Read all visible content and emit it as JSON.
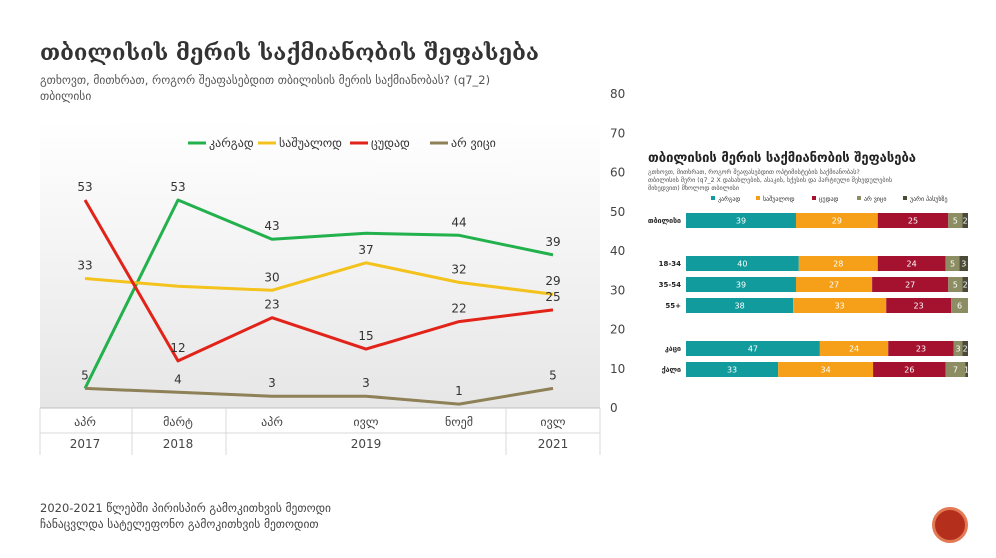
{
  "title": "თბილისის მერის საქმიანობის შეფასება",
  "subtitle": [
    "გთხოვთ, მითხრათ, როგორ შეაფასებდით თბილისის მერის საქმიანობას? (q7_2)",
    "თბილისი"
  ],
  "footer": [
    "2020-2021 წლებში პირისპირ გამოკითხვის მეთოდი",
    "ჩანაცვლდა სატელეფონო გამოკითხვის მეთოდით"
  ],
  "colors": {
    "good": "#22b14c",
    "average": "#f4c21c",
    "bad": "#e2231a",
    "dk": "#8e8057",
    "teal": "#129b9c",
    "orange": "#f6a01a",
    "darkred": "#a4122f",
    "olive": "#8c8d62",
    "dark": "#4a4a36"
  },
  "chart_data": [
    {
      "type": "line",
      "categories": [
        {
          "month": "აპრ",
          "year": "2017"
        },
        {
          "month": "მარტ",
          "year": "2018"
        },
        {
          "month": "აპრ",
          "year": "2019"
        },
        {
          "month": "ივლ",
          "year": "2019"
        },
        {
          "month": "ნოემ",
          "year": "2019"
        },
        {
          "month": "ივლ",
          "year": "2021"
        }
      ],
      "year_labels": [
        "2017",
        "2018",
        "2019",
        "2021"
      ],
      "series": [
        {
          "name": "კარგად",
          "color": "#22b14c",
          "values": [
            5,
            53,
            43,
            44.5,
            44,
            39
          ],
          "labels": [
            "",
            "53",
            "43",
            "",
            "44",
            "39"
          ]
        },
        {
          "name": "საშუალოდ",
          "color": "#f4c21c",
          "values": [
            33,
            31,
            30,
            37,
            32,
            29
          ],
          "labels": [
            "33",
            "",
            "30",
            "37",
            "32",
            "29"
          ]
        },
        {
          "name": "ცუდად",
          "color": "#e2231a",
          "values": [
            53,
            12,
            23,
            15,
            22,
            25
          ],
          "labels": [
            "53",
            "12",
            "23",
            "15",
            "22",
            "25"
          ]
        },
        {
          "name": "არ ვიცი",
          "color": "#8e8057",
          "values": [
            5,
            4,
            3,
            3,
            1,
            5
          ],
          "labels": [
            "5",
            "4",
            "3",
            "3",
            "1",
            "5"
          ]
        }
      ],
      "ylim": [
        0,
        80
      ],
      "y_ticks": [
        "0",
        "10",
        "20",
        "30",
        "40",
        "50",
        "60",
        "70",
        "80"
      ],
      "legend_position": "top"
    },
    {
      "type": "bar",
      "stacked": true,
      "orientation": "horizontal",
      "title": "თბილისის მერის საქმიანობის შეფასება",
      "subtitle": [
        "გთხოვთ, მითხრათ, როგორ შეაფასებდით ოპტიმისტების საქმიანობას?",
        "თბილისის მერი (q7_2 X დასახლების, ასაკის, სქესის და პარტიული შეხედულების",
        "მიხედვით) მხოლოდ თბილისი"
      ],
      "legend": [
        "კარგად",
        "საშუალოდ",
        "ცუდად",
        "არ ვიცი",
        "უარი პასუხზე"
      ],
      "legend_colors": [
        "#129b9c",
        "#f6a01a",
        "#a4122f",
        "#8c8d62",
        "#4a4a36"
      ],
      "categories": [
        "თბილისი",
        "18-34",
        "35-54",
        "55+",
        "კაცი",
        "ქალი"
      ],
      "values": [
        [
          39,
          29,
          25,
          5,
          2
        ],
        [
          40,
          28,
          24,
          5,
          3
        ],
        [
          39,
          27,
          27,
          5,
          2
        ],
        [
          38,
          33,
          23,
          6,
          0
        ],
        [
          47,
          24,
          23,
          3,
          2
        ],
        [
          33,
          34,
          26,
          7,
          1
        ]
      ]
    }
  ]
}
